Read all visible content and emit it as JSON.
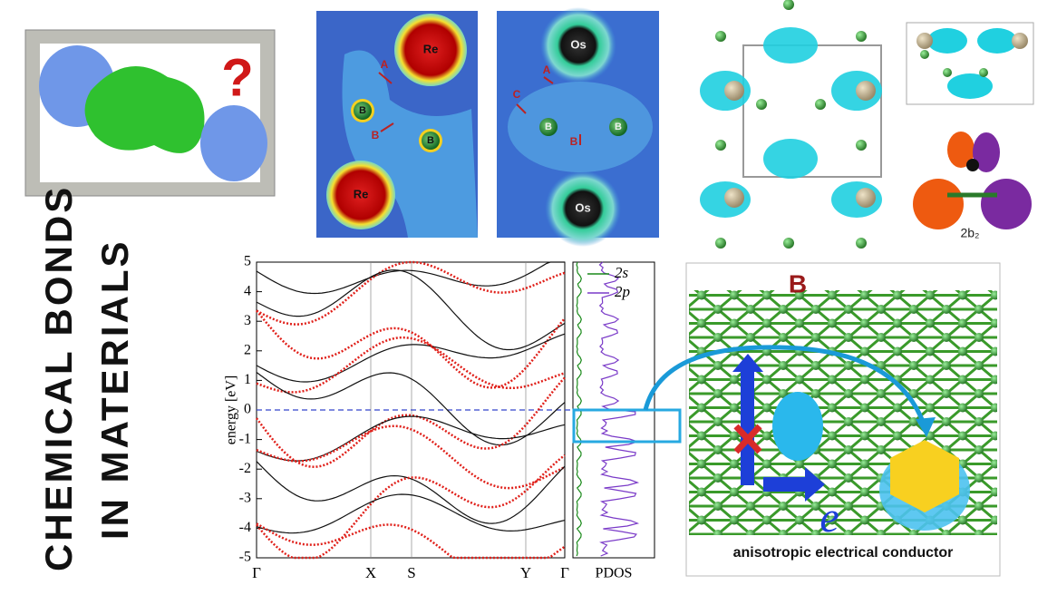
{
  "header": {
    "line1": "CHEMICAL BONDS",
    "line2": "IN MATERIALS"
  },
  "icon": {
    "mark": "?"
  },
  "re_panel": {
    "atoms": [
      "Re",
      "Re",
      "B",
      "B"
    ],
    "arrows": [
      "A",
      "B"
    ]
  },
  "os_panel": {
    "atoms": [
      "Os",
      "Os",
      "B",
      "B"
    ],
    "arrows": [
      "C",
      "A",
      "B"
    ]
  },
  "orbital": {
    "label": "2b₂"
  },
  "band_plot": {
    "ylabel": "energy [eV]",
    "ylim": [
      -5,
      5
    ],
    "yticks": [
      -5,
      -4,
      -3,
      -2,
      -1,
      0,
      1,
      2,
      3,
      4,
      5
    ],
    "kpoints": [
      "Γ",
      "X",
      "S",
      "Y",
      "Γ"
    ],
    "pdos_label": "PDOS",
    "legend": [
      "2s",
      "2p"
    ]
  },
  "conductor": {
    "element": "B",
    "carrier": "e",
    "caption": "anisotropic electrical conductor"
  }
}
